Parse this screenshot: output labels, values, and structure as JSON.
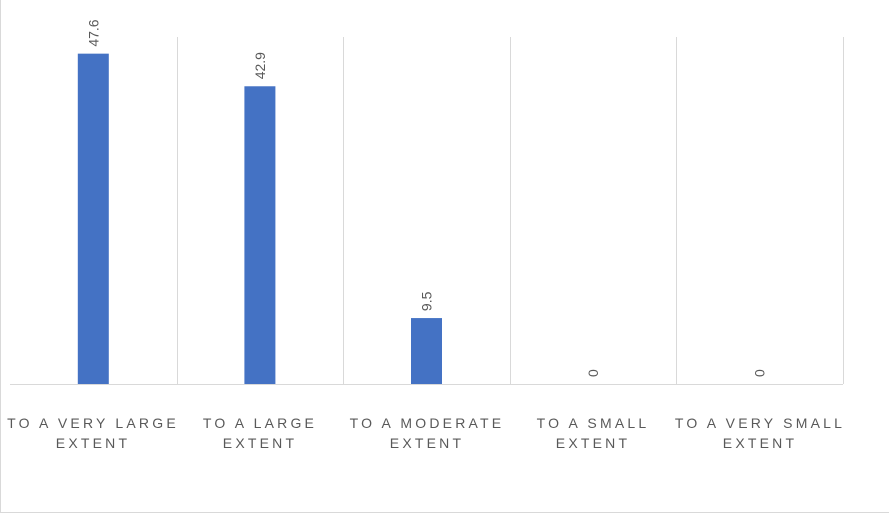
{
  "chart_data": {
    "type": "bar",
    "categories": [
      "TO A VERY LARGE EXTENT",
      "TO A LARGE EXTENT",
      "TO A MODERATE EXTENT",
      "TO A SMALL EXTENT",
      "TO A VERY SMALL EXTENT"
    ],
    "values": [
      47.6,
      42.9,
      9.5,
      0,
      0
    ],
    "data_labels": [
      "47.6",
      "42.9",
      "9.5",
      "0",
      "0"
    ],
    "title": "",
    "xlabel": "",
    "ylabel": "",
    "ylim": [
      0,
      50
    ],
    "grid": "vertical category separators",
    "legend": "none",
    "bar_color": "#4472c4",
    "label_color": "#595959",
    "grid_color": "#d9d9d9"
  }
}
